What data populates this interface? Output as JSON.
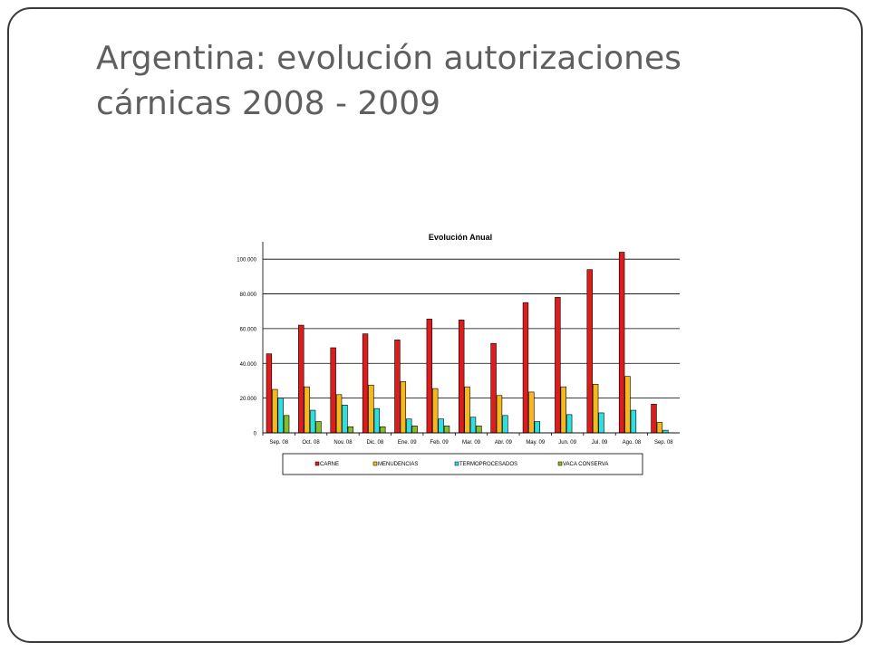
{
  "slide": {
    "title_line1": "Argentina: evolución autorizaciones",
    "title_line2": "cárnicas 2008 - 2009"
  },
  "chart_data": {
    "type": "bar",
    "title": "Evolución Anual",
    "xlabel": "",
    "ylabel": "",
    "ylim": [
      0,
      110000
    ],
    "yticks": [
      0,
      20000,
      40000,
      60000,
      80000,
      100000
    ],
    "ytick_labels": [
      "0",
      "20.000",
      "40.000",
      "60.000",
      "80.000",
      "100.000"
    ],
    "grid": true,
    "legend_position": "bottom",
    "categories": [
      "Sep. 08",
      "Oct. 08",
      "Nov. 08",
      "Dic. 08",
      "Ene. 09",
      "Feb. 09",
      "Mar. 09",
      "Abr. 09",
      "May. 09",
      "Jun. 09",
      "Jul. 09",
      "Ago. 08",
      "Sep. 08"
    ],
    "series": [
      {
        "name": "CARNE",
        "color": "#dd1c1c",
        "values": [
          45500,
          62000,
          49000,
          57000,
          53500,
          65500,
          65000,
          51500,
          75000,
          78000,
          94000,
          104000,
          16500
        ]
      },
      {
        "name": "MENUDENCIAS",
        "color": "#f7b81e",
        "values": [
          25000,
          26500,
          22000,
          27500,
          29500,
          25500,
          26500,
          21500,
          23500,
          26500,
          28000,
          32500,
          6000
        ]
      },
      {
        "name": "TERMOPROCESADOS",
        "color": "#2fdede",
        "values": [
          20000,
          13000,
          16000,
          14000,
          8000,
          8000,
          9000,
          10000,
          6500,
          10500,
          11500,
          13000,
          1500
        ]
      },
      {
        "name": "VACA CONSERVA",
        "color": "#86bd2a",
        "values": [
          10000,
          6500,
          3500,
          3500,
          4000,
          4000,
          4000,
          0,
          0,
          0,
          0,
          0,
          0
        ]
      }
    ]
  }
}
